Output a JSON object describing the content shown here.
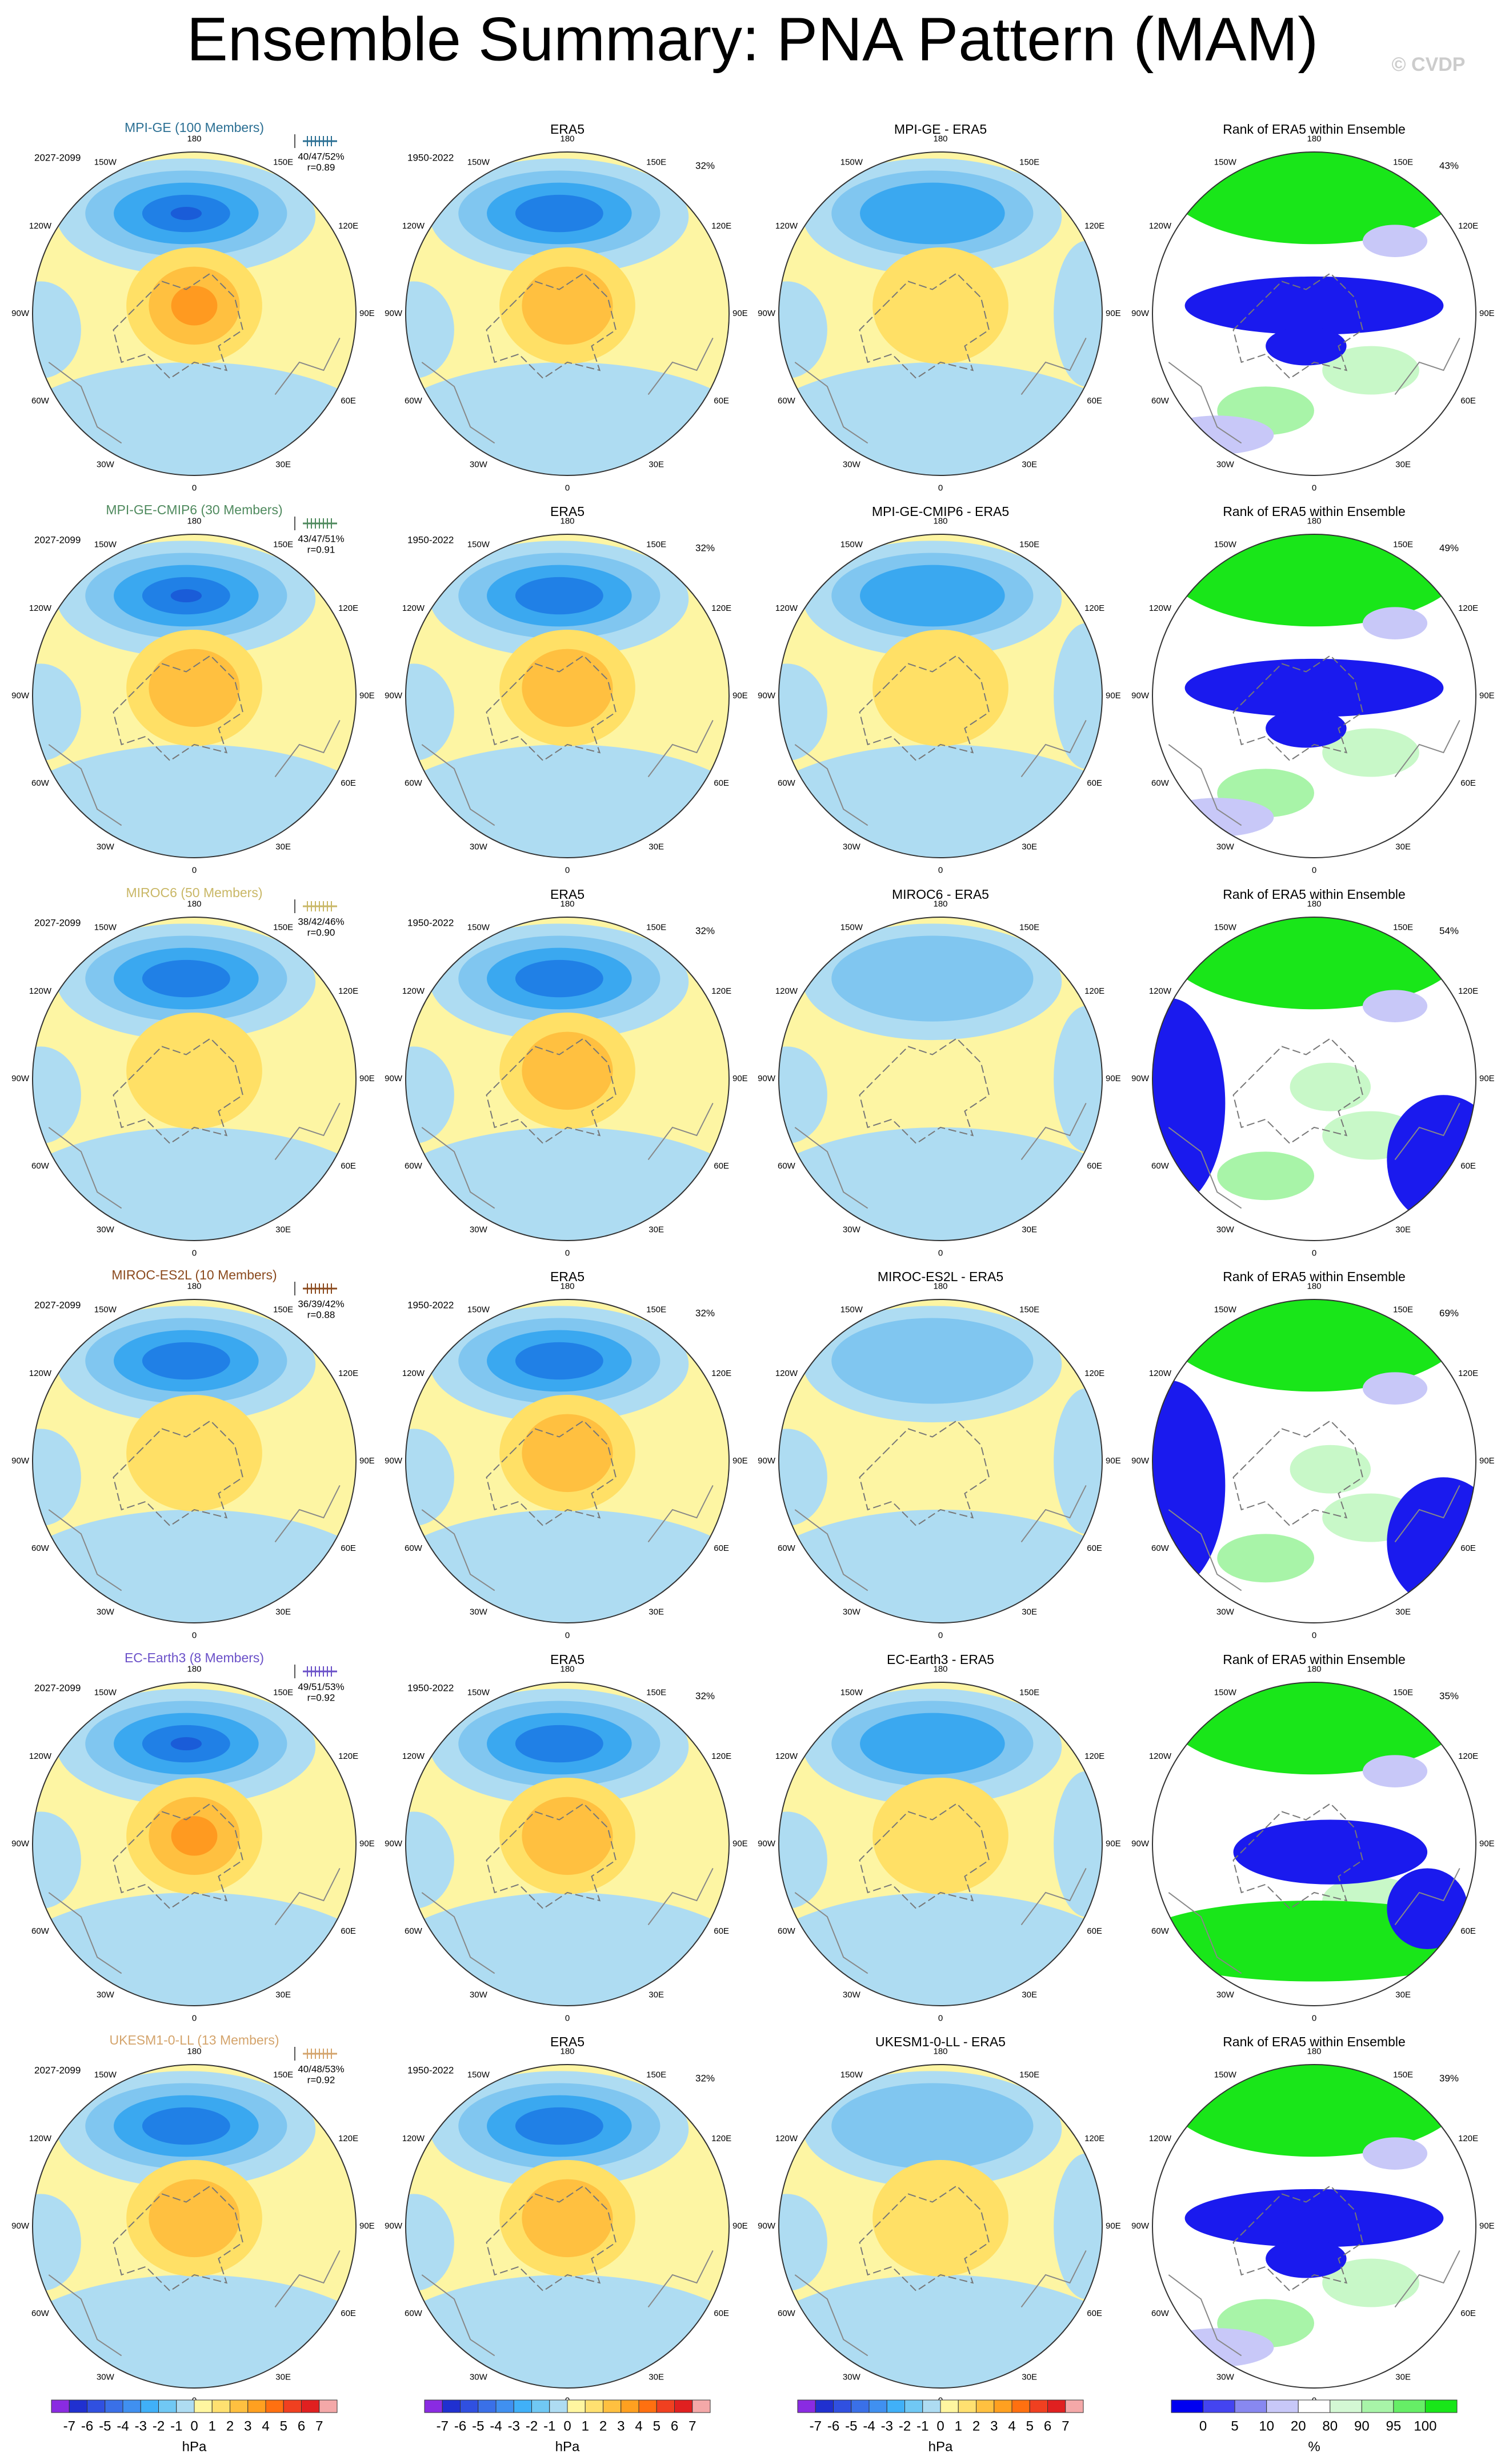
{
  "title": "Ensemble Summary: PNA Pattern (MAM)",
  "copyright": "© CVDP",
  "lon_labels": [
    "180",
    "150E",
    "120E",
    "90E",
    "60E",
    "30E",
    "0",
    "30W",
    "60W",
    "90W",
    "120W",
    "150W"
  ],
  "rows": [
    {
      "model": "MPI-GE (100 Members)",
      "model_color": "#2b6f93",
      "period": "2027-2099",
      "stats": "40/47/52%",
      "r": "r=0.89",
      "era_title": "ERA5",
      "era_period": "1950-2022",
      "era_pct": "32%",
      "diff_title": "MPI-GE - ERA5",
      "rank_title": "Rank of ERA5 within Ensemble",
      "rank_pct": "43%"
    },
    {
      "model": "MPI-GE-CMIP6 (30 Members)",
      "model_color": "#4f8a5e",
      "period": "2027-2099",
      "stats": "43/47/51%",
      "r": "r=0.91",
      "era_title": "ERA5",
      "era_period": "1950-2022",
      "era_pct": "32%",
      "diff_title": "MPI-GE-CMIP6 - ERA5",
      "rank_title": "Rank of ERA5 within Ensemble",
      "rank_pct": "49%"
    },
    {
      "model": "MIROC6 (50 Members)",
      "model_color": "#c9b766",
      "period": "2027-2099",
      "stats": "38/42/46%",
      "r": "r=0.90",
      "era_title": "ERA5",
      "era_period": "1950-2022",
      "era_pct": "32%",
      "diff_title": "MIROC6 - ERA5",
      "rank_title": "Rank of ERA5 within Ensemble",
      "rank_pct": "54%"
    },
    {
      "model": "MIROC-ES2L (10 Members)",
      "model_color": "#8b4a1e",
      "period": "2027-2099",
      "stats": "36/39/42%",
      "r": "r=0.88",
      "era_title": "ERA5",
      "era_period": "1950-2022",
      "era_pct": "32%",
      "diff_title": "MIROC-ES2L - ERA5",
      "rank_title": "Rank of ERA5 within Ensemble",
      "rank_pct": "69%"
    },
    {
      "model": "EC-Earth3 (8 Members)",
      "model_color": "#6a50c8",
      "period": "2027-2099",
      "stats": "49/51/53%",
      "r": "r=0.92",
      "era_title": "ERA5",
      "era_period": "1950-2022",
      "era_pct": "32%",
      "diff_title": "EC-Earth3 - ERA5",
      "rank_title": "Rank of ERA5 within Ensemble",
      "rank_pct": "35%"
    },
    {
      "model": "UKESM1-0-LL (13 Members)",
      "model_color": "#d4a46c",
      "period": "2027-2099",
      "stats": "40/48/53%",
      "r": "r=0.92",
      "era_title": "ERA5",
      "era_period": "1950-2022",
      "era_pct": "32%",
      "diff_title": "UKESM1-0-LL - ERA5",
      "rank_title": "Rank of ERA5 within Ensemble",
      "rank_pct": "39%"
    }
  ],
  "colorbars": [
    {
      "ticks": [
        -7,
        -6,
        -5,
        -4,
        -3,
        -2,
        -1,
        0,
        1,
        2,
        3,
        4,
        5,
        6,
        7
      ],
      "unit": "hPa",
      "colors": [
        "#8a2be2",
        "#2030d0",
        "#3050e0",
        "#3a70e8",
        "#4090f0",
        "#40b0f8",
        "#70c8f4",
        "#aedcf2",
        "#fff6a0",
        "#ffe070",
        "#ffc040",
        "#ffa020",
        "#ff7010",
        "#f04020",
        "#e02020",
        "#f4a8a8"
      ]
    },
    {
      "ticks": [
        -7,
        -6,
        -5,
        -4,
        -3,
        -2,
        -1,
        0,
        1,
        2,
        3,
        4,
        5,
        6,
        7
      ],
      "unit": "hPa",
      "colors": [
        "#8a2be2",
        "#2030d0",
        "#3050e0",
        "#3a70e8",
        "#4090f0",
        "#40b0f8",
        "#70c8f4",
        "#aedcf2",
        "#fff6a0",
        "#ffe070",
        "#ffc040",
        "#ffa020",
        "#ff7010",
        "#f04020",
        "#e02020",
        "#f4a8a8"
      ]
    },
    {
      "ticks": [
        -7,
        -6,
        -5,
        -4,
        -3,
        -2,
        -1,
        0,
        1,
        2,
        3,
        4,
        5,
        6,
        7
      ],
      "unit": "hPa",
      "colors": [
        "#8a2be2",
        "#2030d0",
        "#3050e0",
        "#3a70e8",
        "#4090f0",
        "#40b0f8",
        "#70c8f4",
        "#aedcf2",
        "#fff6a0",
        "#ffe070",
        "#ffc040",
        "#ffa020",
        "#ff7010",
        "#f04020",
        "#e02020",
        "#f4a8a8"
      ]
    },
    {
      "ticks": [
        0,
        5,
        10,
        20,
        80,
        90,
        95,
        100
      ],
      "unit": "%",
      "colors": [
        "#0000f0",
        "#4444f0",
        "#8888f0",
        "#c8c8f8",
        "#ffffff",
        "#d4f8d4",
        "#a8f4a8",
        "#66ee66",
        "#19e619"
      ]
    }
  ]
}
